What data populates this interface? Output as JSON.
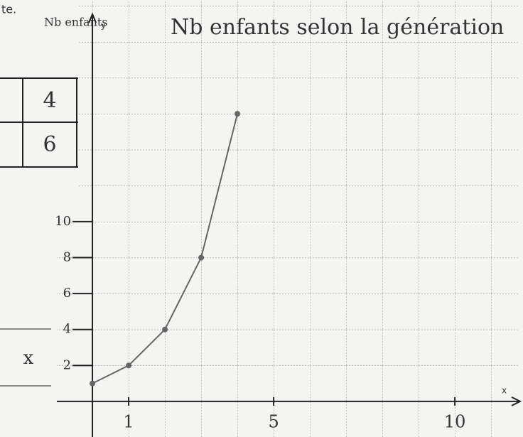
{
  "chart_data": {
    "type": "line",
    "title": "Nb enfants selon la génération",
    "y_axis_title": "Nb enfants",
    "x_axis_name": "x",
    "y_axis_name": "y",
    "x": [
      0,
      1,
      2,
      3,
      4
    ],
    "series": [
      {
        "color": "#666666",
        "values": [
          1,
          2,
          4,
          8,
          16
        ]
      }
    ],
    "xlim": [
      -2.55,
      11.88
    ],
    "ylim": [
      -1.98,
      22.33
    ],
    "xticks": [
      1,
      5,
      10
    ],
    "yticks": [
      2,
      4,
      6,
      8,
      10
    ],
    "grid": true
  },
  "fragments": {
    "note": "te.",
    "table": [
      "4",
      "6"
    ],
    "line_label": "x"
  }
}
